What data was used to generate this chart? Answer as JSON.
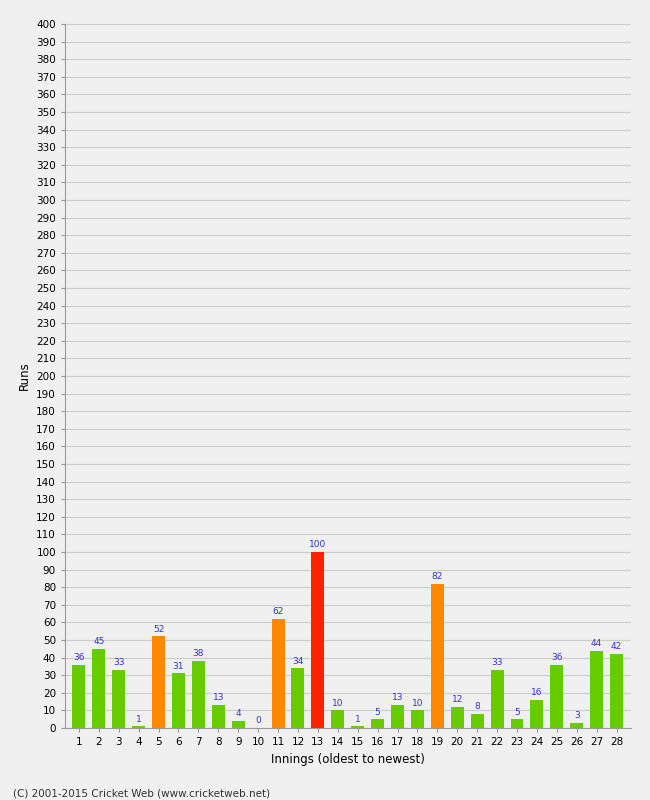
{
  "xlabel": "Innings (oldest to newest)",
  "ylabel": "Runs",
  "values": [
    36,
    45,
    33,
    1,
    52,
    31,
    38,
    13,
    4,
    0,
    62,
    34,
    100,
    10,
    1,
    5,
    13,
    10,
    82,
    12,
    8,
    33,
    5,
    16,
    36,
    3,
    44,
    42
  ],
  "colors": [
    "#66cc00",
    "#66cc00",
    "#66cc00",
    "#66cc00",
    "#ff8800",
    "#66cc00",
    "#66cc00",
    "#66cc00",
    "#66cc00",
    "#66cc00",
    "#ff8800",
    "#66cc00",
    "#ff2200",
    "#66cc00",
    "#66cc00",
    "#66cc00",
    "#66cc00",
    "#66cc00",
    "#ff8800",
    "#66cc00",
    "#66cc00",
    "#66cc00",
    "#66cc00",
    "#66cc00",
    "#66cc00",
    "#66cc00",
    "#66cc00",
    "#66cc00"
  ],
  "x_labels": [
    "1",
    "2",
    "3",
    "4",
    "5",
    "6",
    "7",
    "8",
    "9",
    "10",
    "11",
    "12",
    "13",
    "14",
    "15",
    "16",
    "17",
    "18",
    "19",
    "20",
    "21",
    "22",
    "23",
    "24",
    "25",
    "26",
    "27",
    "28"
  ],
  "ylim": [
    0,
    400
  ],
  "yticks": [
    0,
    10,
    20,
    30,
    40,
    50,
    60,
    70,
    80,
    90,
    100,
    110,
    120,
    130,
    140,
    150,
    160,
    170,
    180,
    190,
    200,
    210,
    220,
    230,
    240,
    250,
    260,
    270,
    280,
    290,
    300,
    310,
    320,
    330,
    340,
    350,
    360,
    370,
    380,
    390,
    400
  ],
  "label_color": "#3333cc",
  "background_color": "#f0f0f0",
  "grid_color": "#cccccc",
  "footer": "(C) 2001-2015 Cricket Web (www.cricketweb.net)"
}
